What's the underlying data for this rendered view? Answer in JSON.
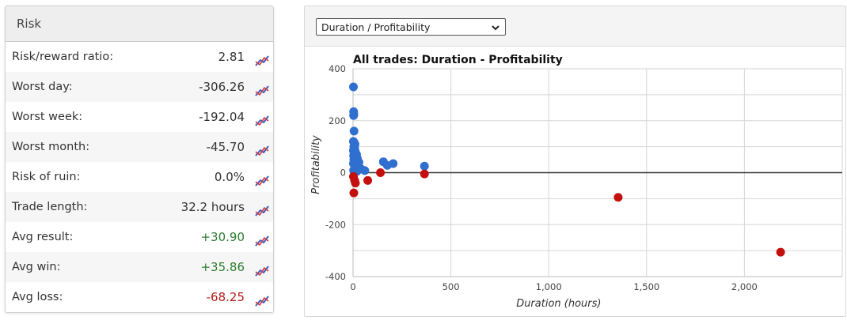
{
  "risk": {
    "title": "Risk",
    "rows": [
      {
        "label": "Risk/reward ratio:",
        "value": "2.81",
        "tone": "neutral"
      },
      {
        "label": "Worst day:",
        "value": "-306.26",
        "tone": "neutral"
      },
      {
        "label": "Worst week:",
        "value": "-192.04",
        "tone": "neutral"
      },
      {
        "label": "Worst month:",
        "value": "-45.70",
        "tone": "neutral"
      },
      {
        "label": "Risk of ruin:",
        "value": "0.0%",
        "tone": "neutral"
      },
      {
        "label": "Trade length:",
        "value": "32.2 hours",
        "tone": "neutral"
      },
      {
        "label": "Avg result:",
        "value": "+30.90",
        "tone": "positive"
      },
      {
        "label": "Avg win:",
        "value": "+35.86",
        "tone": "positive"
      },
      {
        "label": "Avg loss:",
        "value": "-68.25",
        "tone": "negative"
      }
    ],
    "row_icon": "line-chart-icon"
  },
  "chart_selector": {
    "selected": "Duration / Profitability"
  },
  "colors": {
    "win": "#2f6fcf",
    "loss": "#c40f0f",
    "grid": "#d6d6d6",
    "axis": "#333333"
  },
  "chart_data": {
    "type": "scatter",
    "title": "All trades: Duration - Profitability",
    "xlabel": "Duration (hours)",
    "ylabel": "Profitability",
    "xlim": [
      0,
      2500
    ],
    "ylim": [
      -400,
      400
    ],
    "x_ticks": [
      "0",
      "500",
      "1,000",
      "1,500",
      "2,000"
    ],
    "y_ticks": [
      "400",
      "200",
      "0",
      "-200",
      "-400"
    ],
    "x_tick_values": [
      0,
      500,
      1000,
      1500,
      2000
    ],
    "y_tick_values": [
      400,
      200,
      0,
      -200,
      -400
    ],
    "grid": true,
    "series": [
      {
        "outcome": "win",
        "points": [
          [
            2,
            330
          ],
          [
            3,
            235
          ],
          [
            4,
            225
          ],
          [
            3,
            220
          ],
          [
            5,
            160
          ],
          [
            2,
            120
          ],
          [
            6,
            115
          ],
          [
            10,
            110
          ],
          [
            4,
            100
          ],
          [
            8,
            95
          ],
          [
            2,
            85
          ],
          [
            12,
            80
          ],
          [
            5,
            75
          ],
          [
            18,
            70
          ],
          [
            3,
            65
          ],
          [
            8,
            60
          ],
          [
            22,
            55
          ],
          [
            4,
            50
          ],
          [
            12,
            45
          ],
          [
            30,
            40
          ],
          [
            2,
            35
          ],
          [
            7,
            30
          ],
          [
            15,
            25
          ],
          [
            25,
            20
          ],
          [
            40,
            15
          ],
          [
            3,
            10
          ],
          [
            10,
            8
          ],
          [
            20,
            5
          ],
          [
            60,
            8
          ],
          [
            5,
            3
          ],
          [
            155,
            42
          ],
          [
            175,
            28
          ],
          [
            205,
            35
          ],
          [
            365,
            25
          ]
        ]
      },
      {
        "outcome": "loss",
        "points": [
          [
            2,
            -15
          ],
          [
            8,
            -30
          ],
          [
            12,
            -40
          ],
          [
            4,
            -78
          ],
          [
            75,
            -30
          ],
          [
            140,
            0
          ],
          [
            365,
            -5
          ],
          [
            1355,
            -95
          ],
          [
            2185,
            -306
          ]
        ]
      }
    ]
  }
}
